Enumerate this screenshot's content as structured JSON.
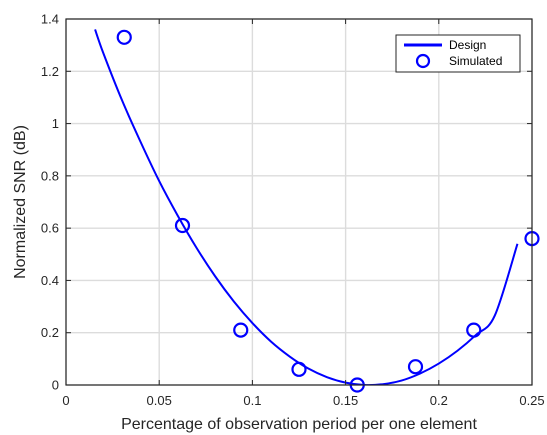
{
  "chart_data": {
    "type": "line",
    "xlabel": "Percentage of observation period per one element",
    "ylabel": "Normalized SNR (dB)",
    "xlim": [
      0,
      0.25
    ],
    "ylim": [
      0,
      1.4
    ],
    "xticks": [
      0,
      0.05,
      0.1,
      0.15,
      0.2,
      0.25
    ],
    "xtick_labels": [
      "0",
      "0.05",
      "0.1",
      "0.15",
      "0.2",
      "0.25"
    ],
    "yticks": [
      0,
      0.2,
      0.4,
      0.6,
      0.8,
      1,
      1.2,
      1.4
    ],
    "ytick_labels": [
      "0",
      "0.2",
      "0.4",
      "0.6",
      "0.8",
      "1",
      "1.2",
      "1.4"
    ],
    "grid": true,
    "legend_position": "top-right",
    "colors": {
      "series": "#0000ff",
      "grid": "#dcdcdc",
      "axis": "#262626"
    },
    "series": [
      {
        "name": "Design",
        "style": "line",
        "x": [
          0.0156,
          0.02,
          0.03,
          0.04,
          0.05,
          0.06,
          0.07,
          0.08,
          0.09,
          0.1,
          0.11,
          0.12,
          0.13,
          0.14,
          0.15,
          0.16,
          0.17,
          0.18,
          0.19,
          0.2,
          0.21,
          0.22,
          0.23,
          0.2422
        ],
        "y": [
          1.36,
          1.27,
          1.09,
          0.93,
          0.78,
          0.647,
          0.525,
          0.416,
          0.32,
          0.237,
          0.166,
          0.109,
          0.063,
          0.03,
          0.009,
          0.0,
          0.003,
          0.017,
          0.044,
          0.082,
          0.131,
          0.192,
          0.265,
          0.54
        ]
      },
      {
        "name": "Simulated",
        "style": "marker",
        "x": [
          0.03125,
          0.0625,
          0.09375,
          0.125,
          0.15625,
          0.1875,
          0.21875,
          0.25
        ],
        "y": [
          1.33,
          0.61,
          0.21,
          0.06,
          0.0,
          0.07,
          0.21,
          0.56
        ]
      }
    ]
  }
}
